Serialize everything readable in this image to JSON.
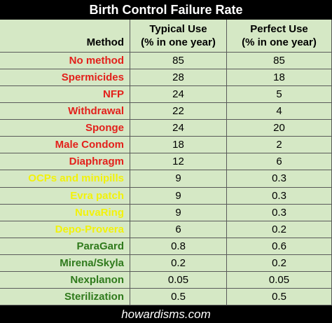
{
  "title": "Birth Control Failure Rate",
  "header": {
    "method": "Method",
    "typical": [
      "Typical Use",
      "(% in one year)"
    ],
    "perfect": [
      "Perfect Use",
      "(% in one year)"
    ]
  },
  "rows": [
    {
      "method": "No method",
      "typical": 85,
      "perfect": 85,
      "color": "#e3201b"
    },
    {
      "method": "Spermicides",
      "typical": 28,
      "perfect": 18,
      "color": "#e3201b"
    },
    {
      "method": "NFP",
      "typical": 24,
      "perfect": 5,
      "color": "#e3201b"
    },
    {
      "method": "Withdrawal",
      "typical": 22,
      "perfect": 4,
      "color": "#e3201b"
    },
    {
      "method": "Sponge",
      "typical": 24,
      "perfect": 20,
      "color": "#e3201b"
    },
    {
      "method": "Male Condom",
      "typical": 18,
      "perfect": 2,
      "color": "#e3201b"
    },
    {
      "method": "Diaphragm",
      "typical": 12,
      "perfect": 6,
      "color": "#e3201b"
    },
    {
      "method": "OCPs and minipills",
      "typical": 9,
      "perfect": 0.3,
      "color": "#f2f20a"
    },
    {
      "method": "Evra patch",
      "typical": 9,
      "perfect": 0.3,
      "color": "#f2f20a"
    },
    {
      "method": "NuvaRing",
      "typical": 9,
      "perfect": 0.3,
      "color": "#f2f20a"
    },
    {
      "method": "Depo-Provera",
      "typical": 6,
      "perfect": 0.2,
      "color": "#f2f20a"
    },
    {
      "method": "ParaGard",
      "typical": 0.8,
      "perfect": 0.6,
      "color": "#2f7a1c"
    },
    {
      "method": "Mirena/Skyla",
      "typical": 0.2,
      "perfect": 0.2,
      "color": "#2f7a1c"
    },
    {
      "method": "Nexplanon",
      "typical": 0.05,
      "perfect": 0.05,
      "color": "#2f7a1c"
    },
    {
      "method": "Sterilization",
      "typical": 0.5,
      "perfect": 0.5,
      "color": "#2f7a1c"
    }
  ],
  "footer": "howardisms.com"
}
